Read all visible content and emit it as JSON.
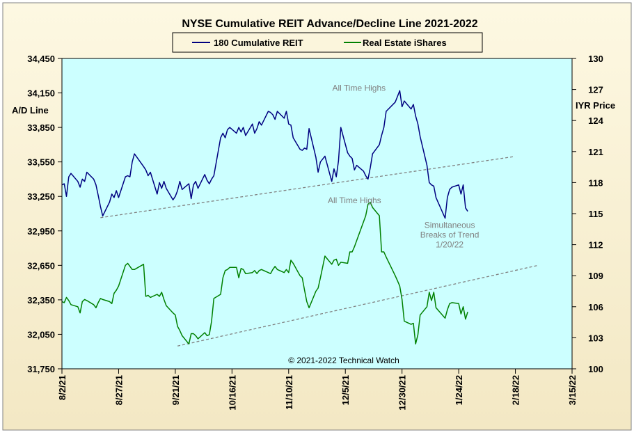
{
  "chart_data": {
    "type": "line",
    "title": "NYSE Cumulative  REIT Advance/Decline  Line 2021-2022",
    "ylabel_left": "A/D Line",
    "ylabel_right": "IYR Price",
    "copyright": "© 2021-2022  Technical  Watch",
    "x_ticks": [
      "8/2/21",
      "8/27/21",
      "9/21/21",
      "10/16/21",
      "11/10/21",
      "12/5/21",
      "12/30/21",
      "1/24/22",
      "2/18/22",
      "3/15/22"
    ],
    "x_start": "2021-08-02",
    "x_end": "2022-03-15",
    "ylim_left": [
      31750,
      34450
    ],
    "yticks_left": [
      "31,750",
      "32,050",
      "32,350",
      "32,650",
      "32,950",
      "33,250",
      "33,550",
      "33,850",
      "34,150",
      "34,450"
    ],
    "ylim_right": [
      100,
      130
    ],
    "yticks_right": [
      "100",
      "103",
      "106",
      "109",
      "112",
      "115",
      "118",
      "121",
      "124",
      "127",
      "130"
    ],
    "grid": false,
    "legend_position": "top-center",
    "colors": {
      "series1": "#000080",
      "series2": "#008000",
      "plot_bg": "#ccffff",
      "frame_bg": "#fbf5dc",
      "trend": "#808080"
    },
    "series": [
      {
        "name": "180 Cumulative REIT",
        "axis": "left",
        "points": [
          [
            "2021-08-02",
            33350
          ],
          [
            "2021-08-03",
            33360
          ],
          [
            "2021-08-04",
            33250
          ],
          [
            "2021-08-05",
            33420
          ],
          [
            "2021-08-06",
            33450
          ],
          [
            "2021-08-09",
            33380
          ],
          [
            "2021-08-10",
            33330
          ],
          [
            "2021-08-11",
            33400
          ],
          [
            "2021-08-12",
            33380
          ],
          [
            "2021-08-13",
            33460
          ],
          [
            "2021-08-16",
            33400
          ],
          [
            "2021-08-17",
            33350
          ],
          [
            "2021-08-18",
            33260
          ],
          [
            "2021-08-19",
            33160
          ],
          [
            "2021-08-20",
            33080
          ],
          [
            "2021-08-23",
            33200
          ],
          [
            "2021-08-24",
            33270
          ],
          [
            "2021-08-25",
            33240
          ],
          [
            "2021-08-26",
            33300
          ],
          [
            "2021-08-27",
            33240
          ],
          [
            "2021-08-30",
            33420
          ],
          [
            "2021-08-31",
            33430
          ],
          [
            "2021-09-01",
            33420
          ],
          [
            "2021-09-02",
            33550
          ],
          [
            "2021-09-03",
            33620
          ],
          [
            "2021-09-07",
            33510
          ],
          [
            "2021-09-08",
            33480
          ],
          [
            "2021-09-09",
            33430
          ],
          [
            "2021-09-10",
            33460
          ],
          [
            "2021-09-13",
            33270
          ],
          [
            "2021-09-14",
            33370
          ],
          [
            "2021-09-15",
            33320
          ],
          [
            "2021-09-16",
            33380
          ],
          [
            "2021-09-17",
            33320
          ],
          [
            "2021-09-20",
            33220
          ],
          [
            "2021-09-21",
            33250
          ],
          [
            "2021-09-22",
            33300
          ],
          [
            "2021-09-23",
            33380
          ],
          [
            "2021-09-24",
            33310
          ],
          [
            "2021-09-27",
            33360
          ],
          [
            "2021-09-28",
            33230
          ],
          [
            "2021-09-29",
            33350
          ],
          [
            "2021-09-30",
            33380
          ],
          [
            "2021-10-01",
            33320
          ],
          [
            "2021-10-04",
            33440
          ],
          [
            "2021-10-05",
            33390
          ],
          [
            "2021-10-06",
            33360
          ],
          [
            "2021-10-07",
            33400
          ],
          [
            "2021-10-08",
            33430
          ],
          [
            "2021-10-11",
            33760
          ],
          [
            "2021-10-12",
            33800
          ],
          [
            "2021-10-13",
            33760
          ],
          [
            "2021-10-14",
            33830
          ],
          [
            "2021-10-15",
            33850
          ],
          [
            "2021-10-18",
            33800
          ],
          [
            "2021-10-19",
            33850
          ],
          [
            "2021-10-20",
            33810
          ],
          [
            "2021-10-21",
            33850
          ],
          [
            "2021-10-22",
            33780
          ],
          [
            "2021-10-25",
            33880
          ],
          [
            "2021-10-26",
            33800
          ],
          [
            "2021-10-27",
            33840
          ],
          [
            "2021-10-28",
            33900
          ],
          [
            "2021-10-29",
            33870
          ],
          [
            "2021-11-01",
            33990
          ],
          [
            "2021-11-02",
            33980
          ],
          [
            "2021-11-03",
            33960
          ],
          [
            "2021-11-04",
            33920
          ],
          [
            "2021-11-05",
            33990
          ],
          [
            "2021-11-08",
            33930
          ],
          [
            "2021-11-09",
            33990
          ],
          [
            "2021-11-10",
            33880
          ],
          [
            "2021-11-11",
            33870
          ],
          [
            "2021-11-12",
            33760
          ],
          [
            "2021-11-15",
            33660
          ],
          [
            "2021-11-16",
            33650
          ],
          [
            "2021-11-17",
            33670
          ],
          [
            "2021-11-18",
            33660
          ],
          [
            "2021-11-19",
            33840
          ],
          [
            "2021-11-22",
            33590
          ],
          [
            "2021-11-23",
            33460
          ],
          [
            "2021-11-24",
            33550
          ],
          [
            "2021-11-26",
            33600
          ],
          [
            "2021-11-29",
            33380
          ],
          [
            "2021-11-30",
            33490
          ],
          [
            "2021-12-01",
            33420
          ],
          [
            "2021-12-02",
            33560
          ],
          [
            "2021-12-03",
            33850
          ],
          [
            "2021-12-06",
            33630
          ],
          [
            "2021-12-07",
            33600
          ],
          [
            "2021-12-08",
            33580
          ],
          [
            "2021-12-09",
            33480
          ],
          [
            "2021-12-10",
            33520
          ],
          [
            "2021-12-13",
            33470
          ],
          [
            "2021-12-14",
            33430
          ],
          [
            "2021-12-15",
            33400
          ],
          [
            "2021-12-16",
            33500
          ],
          [
            "2021-12-17",
            33620
          ],
          [
            "2021-12-20",
            33700
          ],
          [
            "2021-12-21",
            33780
          ],
          [
            "2021-12-22",
            33850
          ],
          [
            "2021-12-23",
            33990
          ],
          [
            "2021-12-27",
            34070
          ],
          [
            "2021-12-28",
            34120
          ],
          [
            "2021-12-29",
            34170
          ],
          [
            "2021-12-30",
            34030
          ],
          [
            "2021-12-31",
            34080
          ],
          [
            "2022-01-03",
            34010
          ],
          [
            "2022-01-04",
            34050
          ],
          [
            "2022-01-05",
            33950
          ],
          [
            "2022-01-06",
            33880
          ],
          [
            "2022-01-07",
            33770
          ],
          [
            "2022-01-10",
            33520
          ],
          [
            "2022-01-11",
            33370
          ],
          [
            "2022-01-12",
            33350
          ],
          [
            "2022-01-13",
            33340
          ],
          [
            "2022-01-14",
            33240
          ],
          [
            "2022-01-18",
            33060
          ],
          [
            "2022-01-19",
            33240
          ],
          [
            "2022-01-20",
            33310
          ],
          [
            "2022-01-21",
            33330
          ],
          [
            "2022-01-24",
            33350
          ],
          [
            "2022-01-25",
            33270
          ],
          [
            "2022-01-26",
            33350
          ],
          [
            "2022-01-27",
            33150
          ],
          [
            "2022-01-28",
            33120
          ]
        ]
      },
      {
        "name": "Real Estate iShares",
        "axis": "right",
        "points": [
          [
            "2021-08-02",
            106.5
          ],
          [
            "2021-08-03",
            106.4
          ],
          [
            "2021-08-04",
            106.9
          ],
          [
            "2021-08-05",
            106.6
          ],
          [
            "2021-08-06",
            106.2
          ],
          [
            "2021-08-09",
            106.0
          ],
          [
            "2021-08-10",
            105.4
          ],
          [
            "2021-08-11",
            106.5
          ],
          [
            "2021-08-12",
            106.7
          ],
          [
            "2021-08-13",
            106.6
          ],
          [
            "2021-08-16",
            106.2
          ],
          [
            "2021-08-17",
            105.9
          ],
          [
            "2021-08-18",
            106.4
          ],
          [
            "2021-08-19",
            106.8
          ],
          [
            "2021-08-20",
            106.7
          ],
          [
            "2021-08-23",
            106.5
          ],
          [
            "2021-08-24",
            106.3
          ],
          [
            "2021-08-25",
            107.3
          ],
          [
            "2021-08-26",
            107.6
          ],
          [
            "2021-08-27",
            108.0
          ],
          [
            "2021-08-30",
            110.0
          ],
          [
            "2021-08-31",
            110.2
          ],
          [
            "2021-09-01",
            109.9
          ],
          [
            "2021-09-02",
            109.6
          ],
          [
            "2021-09-03",
            109.6
          ],
          [
            "2021-09-07",
            110.1
          ],
          [
            "2021-09-08",
            107.0
          ],
          [
            "2021-09-09",
            107.1
          ],
          [
            "2021-09-10",
            106.9
          ],
          [
            "2021-09-13",
            107.2
          ],
          [
            "2021-09-14",
            107.0
          ],
          [
            "2021-09-15",
            107.4
          ],
          [
            "2021-09-16",
            106.7
          ],
          [
            "2021-09-17",
            106.1
          ],
          [
            "2021-09-20",
            105.4
          ],
          [
            "2021-09-21",
            105.2
          ],
          [
            "2021-09-22",
            104.1
          ],
          [
            "2021-09-23",
            103.7
          ],
          [
            "2021-09-24",
            103.2
          ],
          [
            "2021-09-27",
            102.4
          ],
          [
            "2021-09-28",
            103.4
          ],
          [
            "2021-09-29",
            103.4
          ],
          [
            "2021-09-30",
            103.2
          ],
          [
            "2021-10-01",
            102.9
          ],
          [
            "2021-10-04",
            103.5
          ],
          [
            "2021-10-05",
            103.2
          ],
          [
            "2021-10-06",
            103.3
          ],
          [
            "2021-10-07",
            104.6
          ],
          [
            "2021-10-08",
            106.8
          ],
          [
            "2021-10-11",
            107.2
          ],
          [
            "2021-10-12",
            108.8
          ],
          [
            "2021-10-13",
            109.5
          ],
          [
            "2021-10-14",
            109.6
          ],
          [
            "2021-10-15",
            109.8
          ],
          [
            "2021-10-18",
            109.8
          ],
          [
            "2021-10-19",
            108.8
          ],
          [
            "2021-10-20",
            109.7
          ],
          [
            "2021-10-21",
            109.6
          ],
          [
            "2021-10-22",
            109.2
          ],
          [
            "2021-10-25",
            109.3
          ],
          [
            "2021-10-26",
            109.5
          ],
          [
            "2021-10-27",
            109.2
          ],
          [
            "2021-10-28",
            109.5
          ],
          [
            "2021-10-29",
            109.6
          ],
          [
            "2021-11-01",
            109.3
          ],
          [
            "2021-11-02",
            109.2
          ],
          [
            "2021-11-03",
            109.6
          ],
          [
            "2021-11-04",
            109.9
          ],
          [
            "2021-11-05",
            109.6
          ],
          [
            "2021-11-08",
            109.3
          ],
          [
            "2021-11-09",
            109.6
          ],
          [
            "2021-11-10",
            109.3
          ],
          [
            "2021-11-11",
            110.5
          ],
          [
            "2021-11-12",
            110.2
          ],
          [
            "2021-11-15",
            109.0
          ],
          [
            "2021-11-16",
            108.8
          ],
          [
            "2021-11-17",
            107.6
          ],
          [
            "2021-11-18",
            106.5
          ],
          [
            "2021-11-19",
            105.9
          ],
          [
            "2021-11-22",
            107.5
          ],
          [
            "2021-11-23",
            107.8
          ],
          [
            "2021-11-24",
            108.8
          ],
          [
            "2021-11-26",
            110.9
          ],
          [
            "2021-11-29",
            110.1
          ],
          [
            "2021-11-30",
            110.5
          ],
          [
            "2021-12-01",
            110.6
          ],
          [
            "2021-12-02",
            110.0
          ],
          [
            "2021-12-03",
            110.3
          ],
          [
            "2021-12-06",
            110.2
          ],
          [
            "2021-12-07",
            111.3
          ],
          [
            "2021-12-08",
            111.3
          ],
          [
            "2021-12-09",
            111.8
          ],
          [
            "2021-12-10",
            112.4
          ],
          [
            "2021-12-13",
            114.2
          ],
          [
            "2021-12-14",
            114.8
          ],
          [
            "2021-12-15",
            115.9
          ],
          [
            "2021-12-16",
            116.1
          ],
          [
            "2021-12-17",
            115.6
          ],
          [
            "2021-12-20",
            114.8
          ],
          [
            "2021-12-21",
            111.3
          ],
          [
            "2021-12-22",
            111.3
          ],
          [
            "2021-12-23",
            110.8
          ],
          [
            "2021-12-27",
            109.0
          ],
          [
            "2021-12-28",
            108.5
          ],
          [
            "2021-12-29",
            108.0
          ],
          [
            "2021-12-30",
            106.7
          ],
          [
            "2021-12-31",
            104.6
          ],
          [
            "2022-01-03",
            104.3
          ],
          [
            "2022-01-04",
            104.4
          ],
          [
            "2022-01-05",
            102.4
          ],
          [
            "2022-01-06",
            103.3
          ],
          [
            "2022-01-07",
            105.2
          ],
          [
            "2022-01-10",
            106.0
          ],
          [
            "2022-01-11",
            107.4
          ],
          [
            "2022-01-12",
            106.6
          ],
          [
            "2022-01-13",
            107.4
          ],
          [
            "2022-01-14",
            105.9
          ],
          [
            "2022-01-18",
            104.9
          ],
          [
            "2022-01-19",
            105.7
          ],
          [
            "2022-01-20",
            106.3
          ],
          [
            "2022-01-21",
            106.4
          ],
          [
            "2022-01-24",
            106.3
          ],
          [
            "2022-01-25",
            105.3
          ],
          [
            "2022-01-26",
            106.0
          ],
          [
            "2022-01-27",
            104.8
          ],
          [
            "2022-01-28",
            105.5
          ]
        ]
      }
    ],
    "trendlines": [
      {
        "axis": "left",
        "from": [
          "2021-08-19",
          33065
        ],
        "to": [
          "2022-02-17",
          33595
        ]
      },
      {
        "axis": "right",
        "from": [
          "2021-09-22",
          102.2
        ],
        "to": [
          "2022-02-28",
          110.0
        ]
      }
    ],
    "annotations": [
      {
        "text": "All Time Highs",
        "x": "2021-12-11",
        "y_axis": "left",
        "y": 34170
      },
      {
        "text": "All Time Highs",
        "x": "2021-12-09",
        "y_axis": "left",
        "y": 33190
      },
      {
        "text": "Simultaneous",
        "x": "2022-01-20",
        "y_axis": "left",
        "y": 32975
      },
      {
        "text": "Breaks of Trend",
        "x": "2022-01-20",
        "y_axis": "left",
        "y": 32890
      },
      {
        "text": "1/20/22",
        "x": "2022-01-20",
        "y_axis": "left",
        "y": 32805
      }
    ]
  }
}
